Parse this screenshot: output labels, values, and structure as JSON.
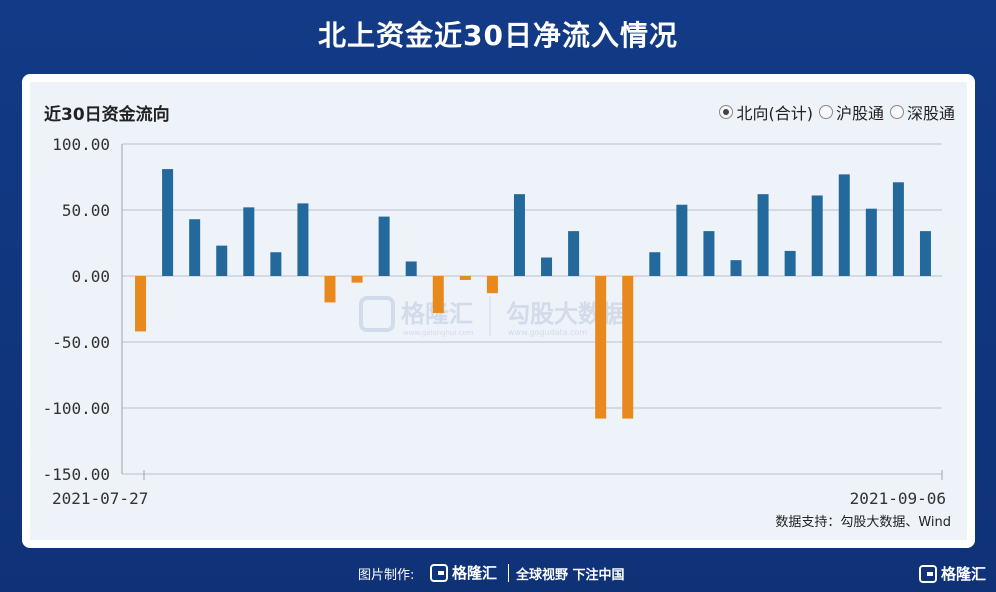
{
  "page_title": "北上资金近30日净流入情况",
  "panel": {
    "title": "近30日资金流向",
    "radios": [
      {
        "label": "北向(合计)",
        "checked": true
      },
      {
        "label": "沪股通",
        "checked": false
      },
      {
        "label": "深股通",
        "checked": false
      }
    ]
  },
  "chart_data": {
    "type": "bar",
    "ylim": [
      -150,
      100
    ],
    "y_ticks": [
      "100.00",
      "50.00",
      "0.00",
      "-50.00",
      "-100.00",
      "-150.00"
    ],
    "x_tick_labels": [
      "2021-07-27",
      "2021-09-06"
    ],
    "values": [
      -42,
      81,
      43,
      23,
      52,
      18,
      55,
      -20,
      -5,
      45,
      11,
      -28,
      -3,
      -13,
      62,
      14,
      34,
      -108,
      -108,
      18,
      54,
      34,
      12,
      62,
      19,
      61,
      77,
      51,
      71,
      34
    ],
    "positive_color": "#23699b",
    "negative_color": "#e8891e",
    "grid": true
  },
  "watermarks": [
    "格隆汇",
    "www.gelonghui.com",
    "勾股大数据",
    "www.gogudata.com"
  ],
  "source": "数据支持：勾股大数据、Wind",
  "footer": {
    "label": "图片制作:",
    "logo_text": "格隆汇",
    "slogan": "全球视野 下注中国",
    "corner_logo_text": "格隆汇"
  }
}
